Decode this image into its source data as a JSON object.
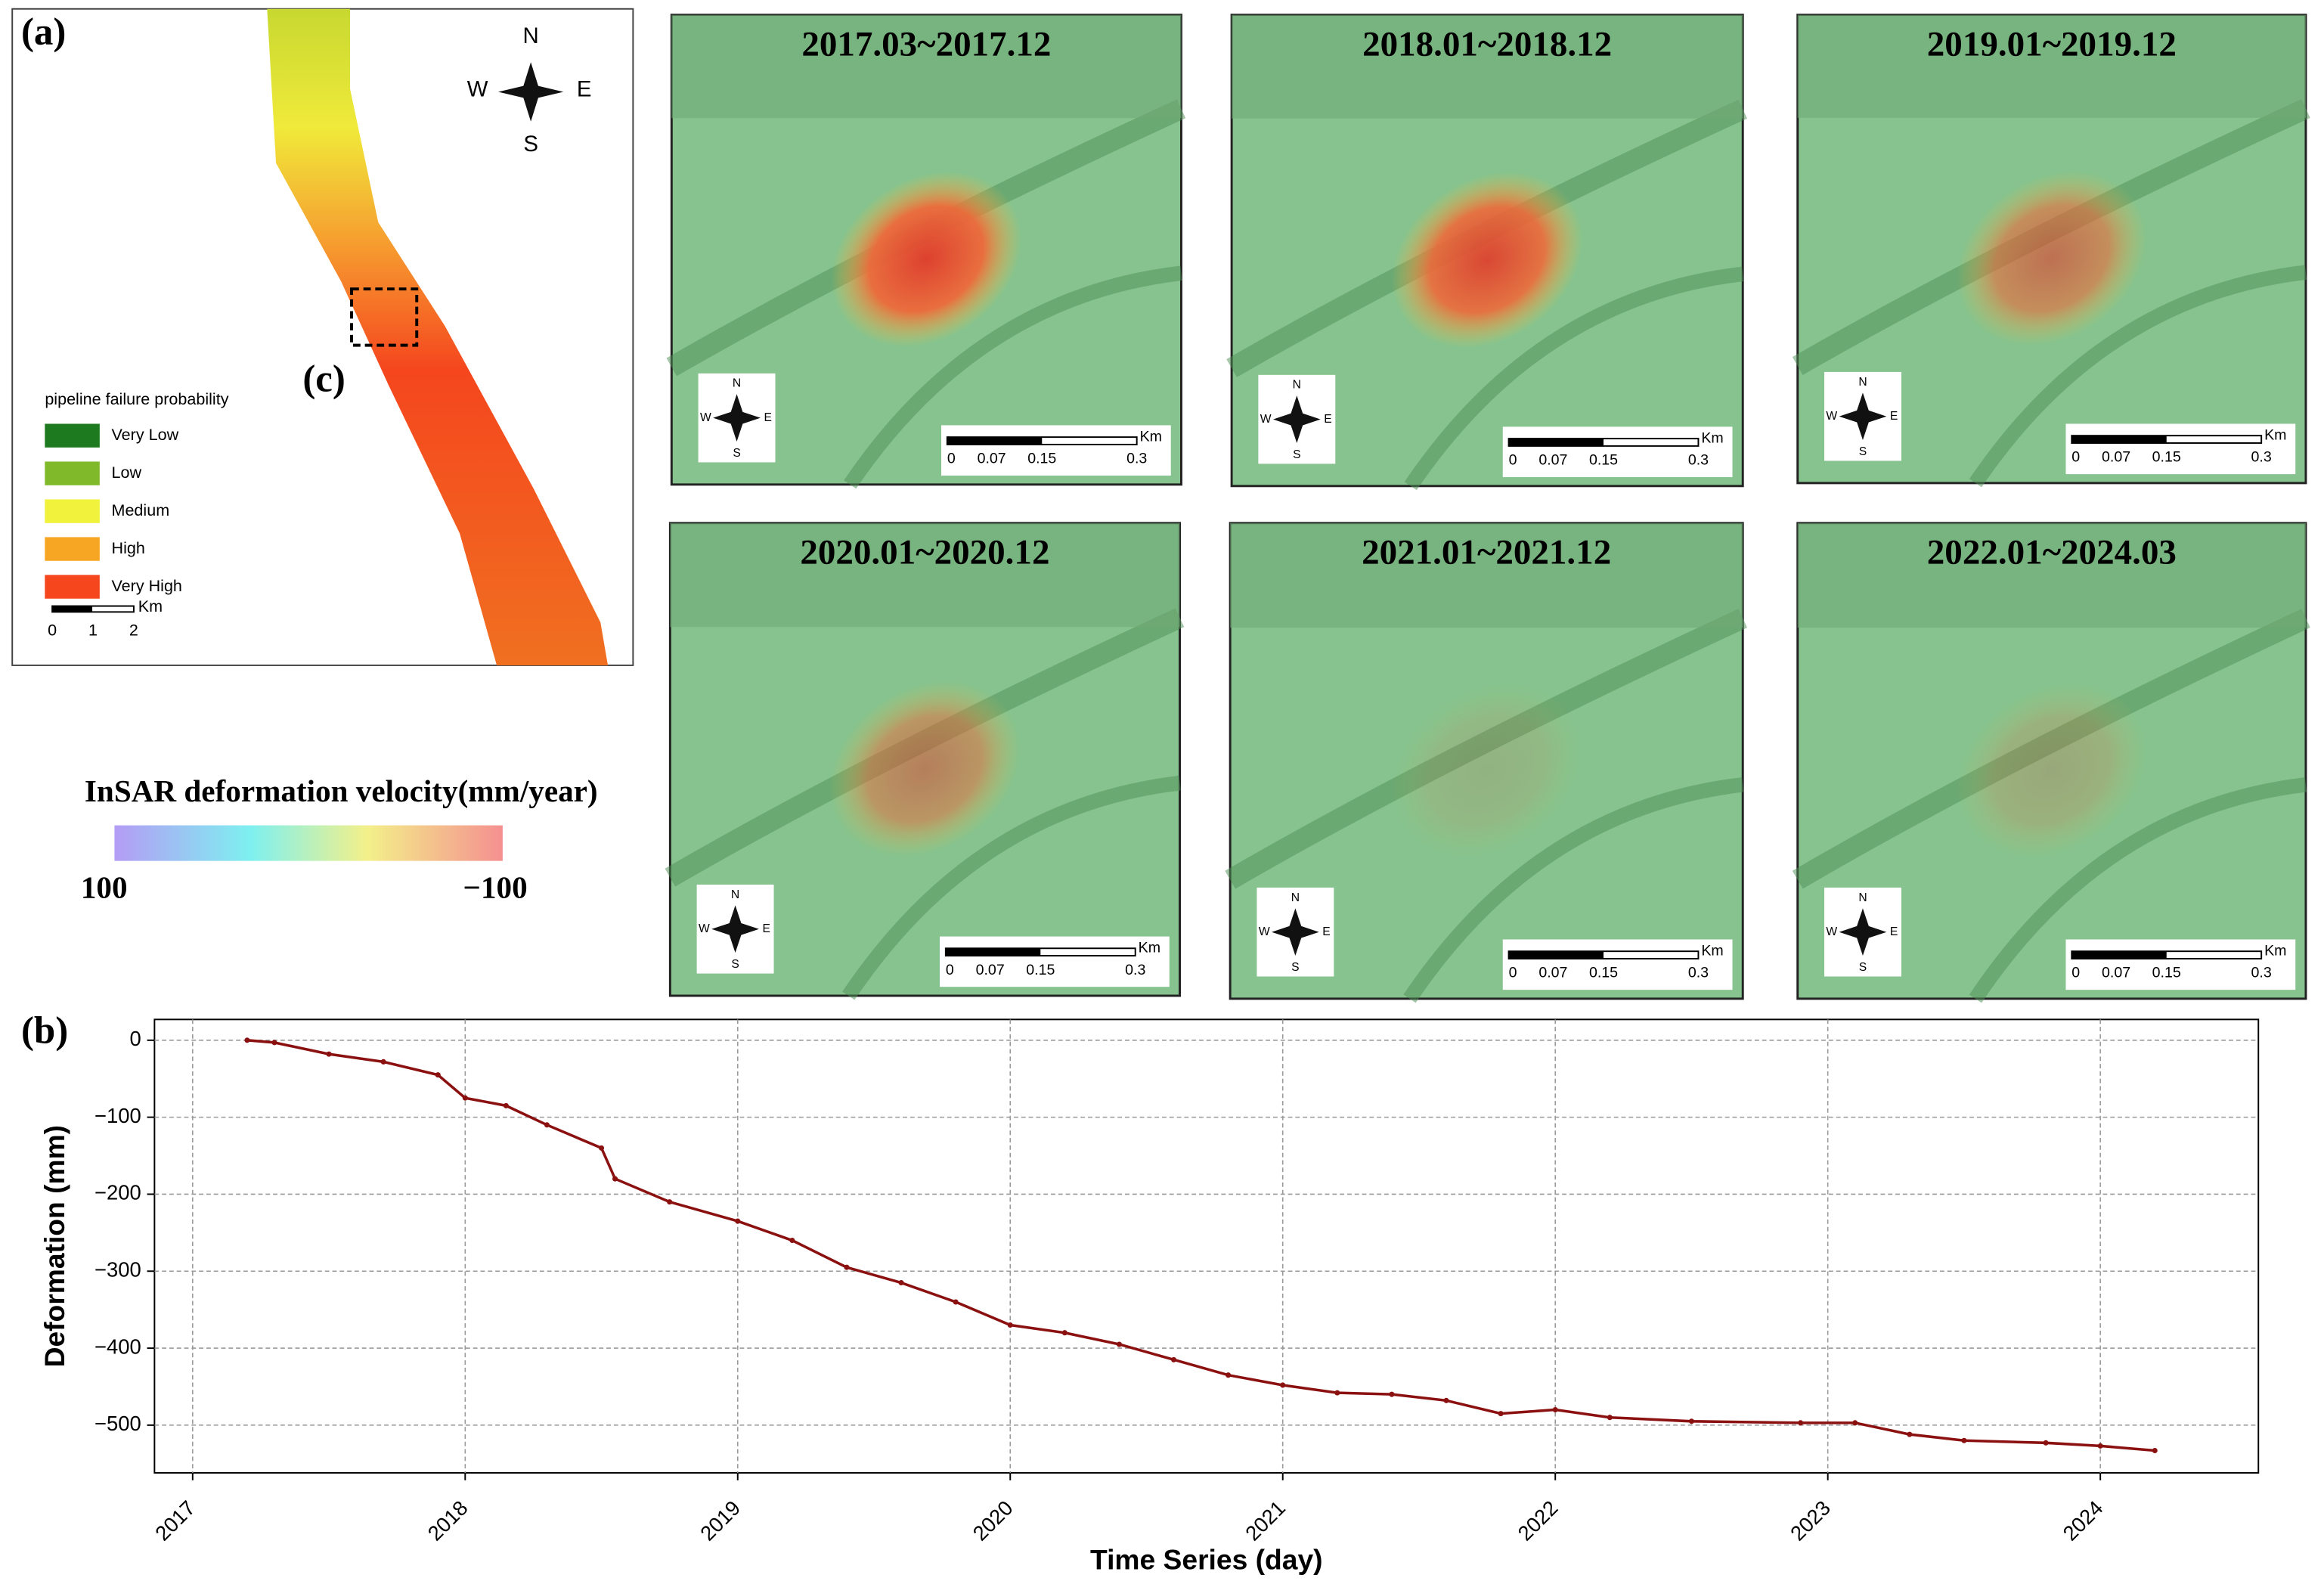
{
  "panel_labels": {
    "a": "(a)",
    "b": "(b)",
    "c": "(c)"
  },
  "map_a": {
    "compass": {
      "n": "N",
      "s": "S",
      "w": "W",
      "e": "E"
    },
    "legend_title": "pipeline failure probability",
    "legend": [
      {
        "label": "Very Low",
        "color": "#1e7a1e"
      },
      {
        "label": "Low",
        "color": "#80b92a"
      },
      {
        "label": "Medium",
        "color": "#f0f23c"
      },
      {
        "label": "High",
        "color": "#f6a623"
      },
      {
        "label": "Very High",
        "color": "#f5461e"
      }
    ],
    "scalebar": {
      "unit": "Km",
      "labels": [
        "0",
        "1",
        "2"
      ]
    }
  },
  "colorbar": {
    "title": "InSAR deformation velocity(mm/year)",
    "min_label": "100",
    "max_label": "−100"
  },
  "maps_c": {
    "titles": [
      "2017.03~2017.12",
      "2018.01~2018.12",
      "2019.01~2019.12",
      "2020.01~2020.12",
      "2021.01~2021.12",
      "2022.01~2024.03"
    ],
    "scalebar": {
      "unit": "Km",
      "labels": [
        "0",
        "0.07",
        "0.15",
        "0.3"
      ]
    },
    "compass": {
      "n": "N",
      "s": "S",
      "w": "W",
      "e": "E"
    }
  },
  "chart_data": {
    "type": "line",
    "xlabel": "Time Series (day)",
    "ylabel": "Deformation (mm)",
    "x": [
      2017.2,
      2017.3,
      2017.5,
      2017.7,
      2017.9,
      2018.0,
      2018.15,
      2018.3,
      2018.5,
      2018.55,
      2018.75,
      2019.0,
      2019.2,
      2019.4,
      2019.6,
      2019.8,
      2020.0,
      2020.2,
      2020.4,
      2020.6,
      2020.8,
      2021.0,
      2021.2,
      2021.4,
      2021.6,
      2021.8,
      2022.0,
      2022.2,
      2022.5,
      2022.9,
      2023.1,
      2023.3,
      2023.5,
      2023.8,
      2024.0,
      2024.2
    ],
    "series": [
      {
        "name": "Deformation",
        "color": "#8b1010",
        "values": [
          0,
          -3,
          -18,
          -28,
          -45,
          -75,
          -85,
          -110,
          -140,
          -180,
          -210,
          -235,
          -260,
          -295,
          -315,
          -340,
          -370,
          -380,
          -395,
          -415,
          -435,
          -448,
          -458,
          -460,
          -468,
          -485,
          -480,
          -490,
          -495,
          -497,
          -497,
          -512,
          -520,
          -523,
          -527,
          -533
        ]
      }
    ],
    "xlim": [
      2016.86,
      2024.58
    ],
    "ylim": [
      -562,
      27
    ],
    "xticks": [
      2017,
      2018,
      2019,
      2020,
      2021,
      2022,
      2023,
      2024
    ],
    "yticks": [
      {
        "value": -500,
        "label": "−500"
      },
      {
        "value": -400,
        "label": "−400"
      },
      {
        "value": -300,
        "label": "−300"
      },
      {
        "value": -200,
        "label": "−200"
      },
      {
        "value": -100,
        "label": "−100"
      },
      0
    ],
    "grid": true
  }
}
